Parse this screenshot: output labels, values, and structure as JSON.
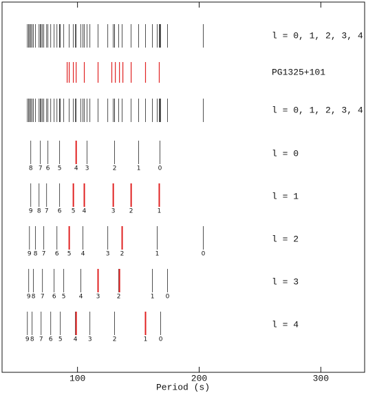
{
  "chart_data": {
    "type": "spectrum",
    "xlabel": "Period (s)",
    "xlim": [
      38,
      336
    ],
    "xticks": [
      100,
      200,
      300
    ],
    "color": "#222222",
    "combined_label": "l = 0, 1, 2, 3, 4",
    "observed": {
      "name": "PG1325+101",
      "color": "#e02020",
      "values": [
        91.5,
        93.2,
        96.6,
        98.9,
        105.6,
        116.9,
        128.2,
        131.1,
        134.5,
        137.3,
        144.1,
        155.9,
        167.2
      ]
    },
    "series": [
      {
        "name": "l = 0",
        "k": [
          8,
          7,
          6,
          5,
          4,
          3,
          2,
          1,
          0
        ],
        "values": [
          61.6,
          69.5,
          75.7,
          85.3,
          98.9,
          107.9,
          130.5,
          150.3,
          167.8
        ],
        "observed": [
          98.9
        ]
      },
      {
        "name": "l = 1",
        "k": [
          9,
          8,
          7,
          6,
          5,
          4,
          3,
          2,
          1
        ],
        "values": [
          61.6,
          68.4,
          74.6,
          85.3,
          96.6,
          105.6,
          129.4,
          144.1,
          167.2
        ],
        "observed": [
          96.6,
          105.6,
          129.4,
          144.1,
          167.2
        ]
      },
      {
        "name": "l = 2",
        "k": [
          9,
          8,
          7,
          6,
          5,
          4,
          3,
          2,
          1,
          0
        ],
        "values": [
          60.5,
          65.5,
          72.3,
          83.1,
          93.2,
          104.5,
          124.9,
          136.7,
          165.5,
          203.4
        ],
        "observed": [
          93.2,
          136.7
        ]
      },
      {
        "name": "l = 3",
        "k": [
          9,
          8,
          7,
          6,
          5,
          4,
          3,
          2,
          1,
          0
        ],
        "values": [
          59.9,
          63.8,
          71.2,
          80.8,
          88.7,
          102.8,
          116.9,
          133.9,
          161.6,
          174.0
        ],
        "observed": [
          116.9,
          134.5
        ]
      },
      {
        "name": "l = 4",
        "k": [
          9,
          8,
          7,
          6,
          5,
          4,
          3,
          2,
          1,
          0
        ],
        "values": [
          58.8,
          62.7,
          70.1,
          78.0,
          85.9,
          98.3,
          110.2,
          130.5,
          155.9,
          168.4
        ],
        "observed": [
          98.9,
          155.9
        ]
      }
    ]
  }
}
